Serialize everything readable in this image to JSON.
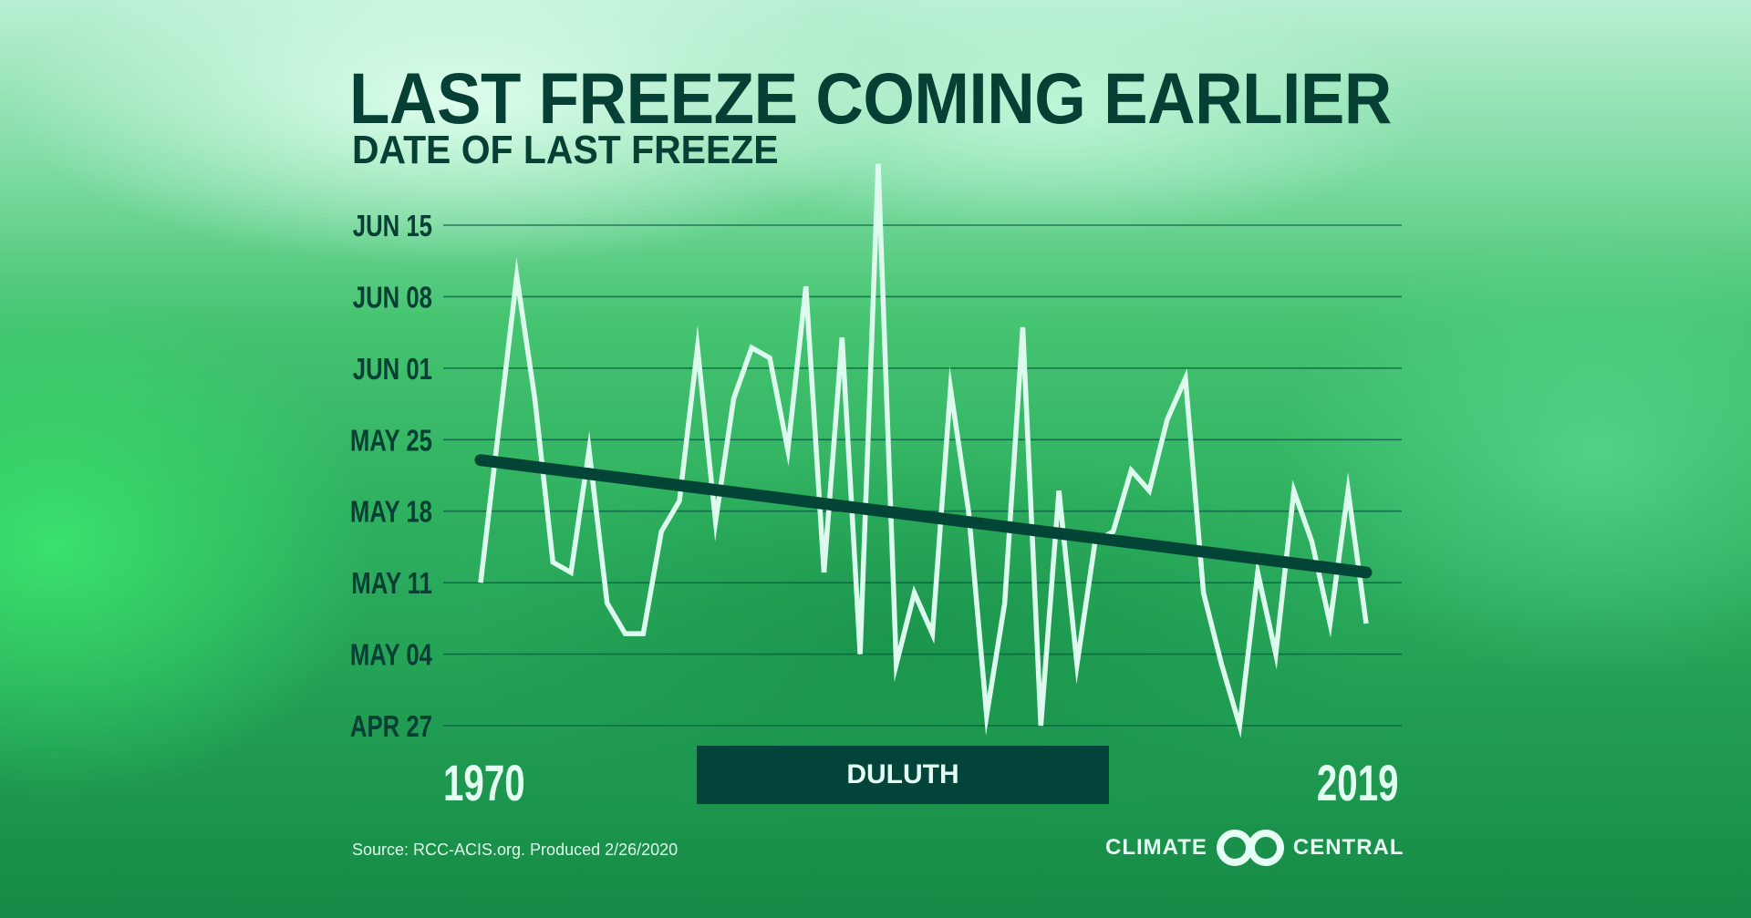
{
  "header": {
    "title": "LAST FREEZE COMING EARLIER",
    "subtitle": "DATE OF LAST FREEZE"
  },
  "chart_data": {
    "type": "line",
    "title": "LAST FREEZE COMING EARLIER",
    "subtitle": "DATE OF LAST FREEZE",
    "station": "DULUTH",
    "x_labels": [
      "1970",
      "2019"
    ],
    "xlim": [
      1970,
      2019
    ],
    "ylim": [
      "Apr 27",
      "Jun 15"
    ],
    "y_ticks": [
      "JUN 15",
      "JUN 08",
      "JUN 01",
      "MAY 25",
      "MAY 18",
      "MAY 11",
      "MAY 04",
      "APR 27"
    ],
    "grid": true,
    "x": [
      1970,
      1971,
      1972,
      1973,
      1974,
      1975,
      1976,
      1977,
      1978,
      1979,
      1980,
      1981,
      1982,
      1983,
      1984,
      1985,
      1986,
      1987,
      1988,
      1989,
      1990,
      1991,
      1992,
      1993,
      1994,
      1995,
      1996,
      1997,
      1998,
      1999,
      2000,
      2001,
      2002,
      2003,
      2004,
      2005,
      2006,
      2007,
      2008,
      2009,
      2010,
      2011,
      2012,
      2013,
      2014,
      2015,
      2016,
      2017,
      2018,
      2019
    ],
    "series": [
      {
        "values": [
          "May 11",
          "May 26",
          "Jun 10",
          "May 29",
          "May 13",
          "May 12",
          "May 24",
          "May 09",
          "May 06",
          "May 06",
          "May 16",
          "May 19",
          "Jun 03",
          "May 17",
          "May 29",
          "Jun 03",
          "Jun 02",
          "May 24",
          "Jun 09",
          "May 12",
          "Jun 04",
          "May 04",
          "Jun 21",
          "May 03",
          "May 10",
          "May 06",
          "May 30",
          "May 18",
          "Apr 28",
          "May 09",
          "Jun 05",
          "Apr 27",
          "May 20",
          "May 03",
          "May 15",
          "May 16",
          "May 22",
          "May 20",
          "May 27",
          "May 31",
          "May 10",
          "May 03",
          "Apr 27",
          "May 12",
          "May 04",
          "May 20",
          "May 15",
          "May 07",
          "May 20",
          "May 07"
        ],
        "color": "#dcfbee"
      }
    ],
    "trend": {
      "start": {
        "x": 1970,
        "y": "May 23"
      },
      "end": {
        "x": 2019,
        "y": "May 12"
      },
      "color": "#024536"
    }
  },
  "footer": {
    "source": "Source: RCC-ACIS.org. Produced 2/26/2020",
    "logo_left": "CLIMATE",
    "logo_right": "CENTRAL"
  },
  "colors": {
    "dark_green": "#02443a",
    "line": "#dcfbee"
  }
}
